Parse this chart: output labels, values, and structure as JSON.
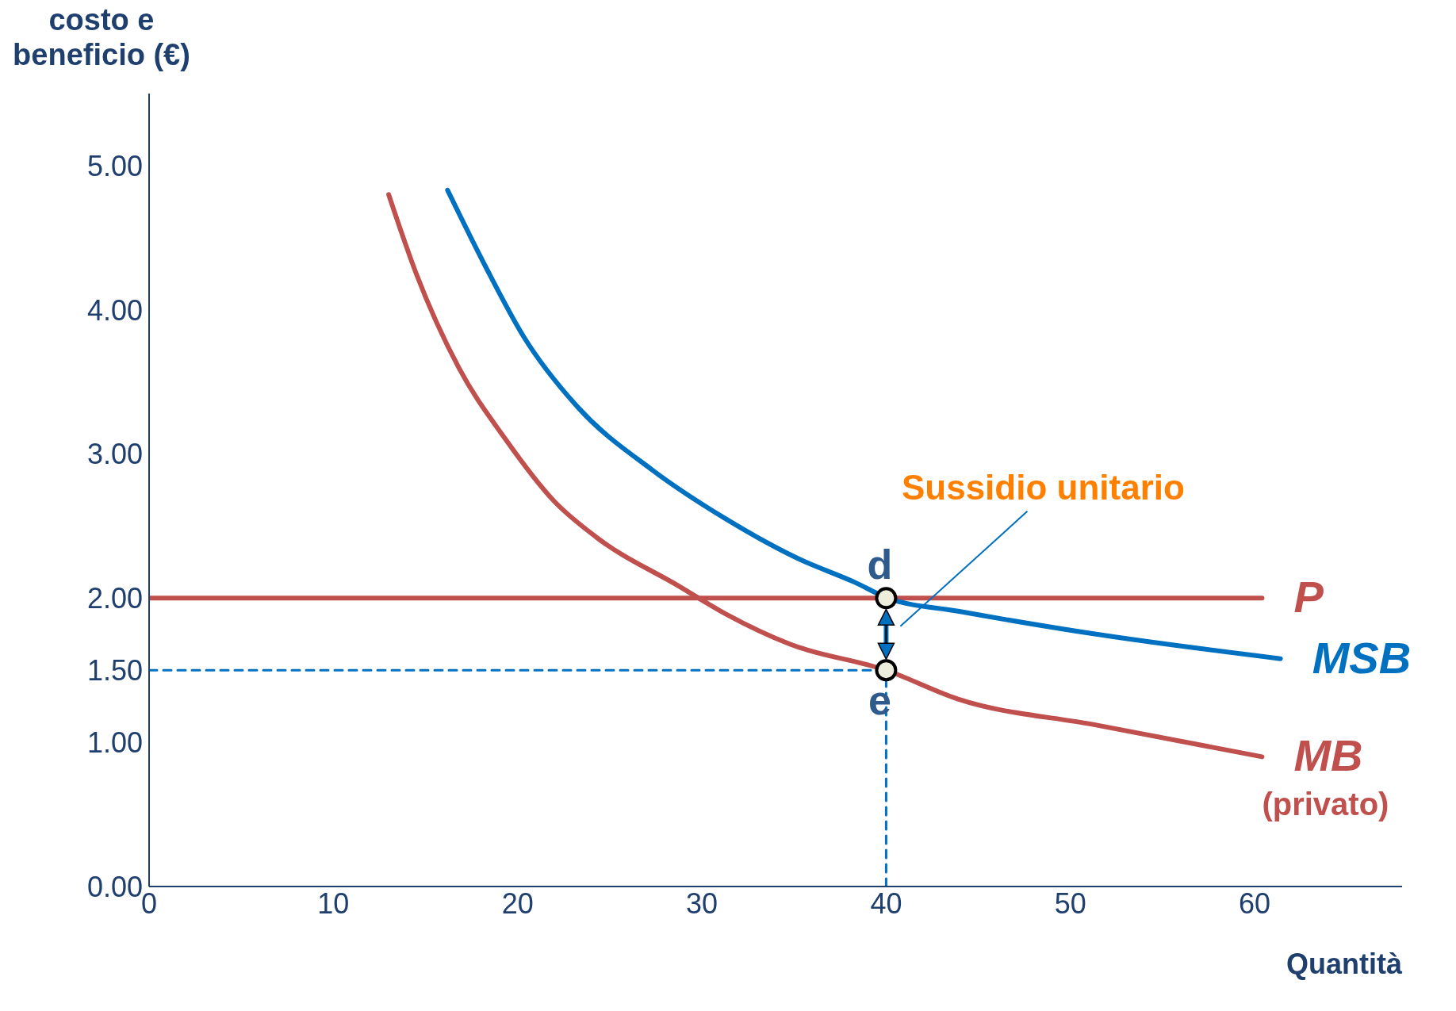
{
  "chart_data": {
    "type": "line",
    "xlabel": "Quantità",
    "ylabel": "costo e beneficio (€)",
    "xlim": [
      0,
      68
    ],
    "ylim": [
      0,
      5.5
    ],
    "xticks": [
      0,
      10,
      20,
      30,
      40,
      50,
      60
    ],
    "yticks": [
      {
        "value": 0,
        "label": "0.00"
      },
      {
        "value": 1,
        "label": "1.00"
      },
      {
        "value": 1.5,
        "label": "1.50"
      },
      {
        "value": 2,
        "label": "2.00"
      },
      {
        "value": 3,
        "label": "3.00"
      },
      {
        "value": 4,
        "label": "4.00"
      },
      {
        "value": 5,
        "label": "5.00"
      }
    ],
    "marker": "none",
    "series": [
      {
        "name": "P",
        "color": "#c0504d",
        "x": [
          0,
          60.4
        ],
        "values": [
          2,
          2
        ]
      },
      {
        "name": "MSB",
        "color": "#0070c0",
        "x": [
          16.2,
          18.3,
          20.3,
          23.3,
          27.3,
          31.3,
          35.3,
          38.3,
          40.1,
          43.9,
          51.4,
          61.4
        ],
        "values": [
          4.83,
          4.29,
          3.82,
          3.32,
          2.89,
          2.55,
          2.27,
          2.11,
          2.0,
          1.91,
          1.75,
          1.58
        ]
      },
      {
        "name": "MB$_{(privato)}$",
        "color": "#c0504d",
        "x": [
          13.0,
          14.5,
          16.8,
          19.3,
          22.0,
          24.3,
          28.8,
          31.3,
          34.8,
          40,
          43.9,
          51.4,
          60.4
        ],
        "values": [
          4.8,
          4.25,
          3.6,
          3.11,
          2.67,
          2.42,
          2.08,
          1.89,
          1.68,
          1.5,
          1.3,
          1.12,
          0.9
        ]
      },
      {
        "color": "#0070c0",
        "line_style": "dashed",
        "x": [
          0,
          40
        ],
        "values": [
          1.5,
          1.5
        ]
      },
      {
        "color": "#0070c0",
        "line_style": "dashed",
        "x": [
          40,
          40
        ],
        "values": [
          0,
          1.5
        ]
      }
    ],
    "annotations": [
      {
        "text": "d",
        "x": 40,
        "y": 2
      },
      {
        "text": "e",
        "x": 40,
        "y": 1.5
      },
      "Sussidio unitario"
    ]
  }
}
